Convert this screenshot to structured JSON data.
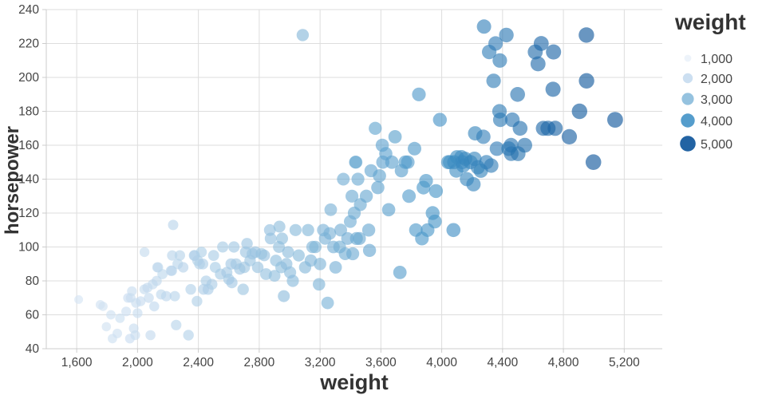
{
  "chart_data": {
    "type": "scatter",
    "title": "",
    "xlabel": "weight",
    "ylabel": "horsepower",
    "x_domain": [
      1400,
      5450
    ],
    "y_domain": [
      40,
      240
    ],
    "x_ticks": [
      {
        "v": 1600,
        "label": "1,600"
      },
      {
        "v": 2000,
        "label": "2,000"
      },
      {
        "v": 2400,
        "label": "2,400"
      },
      {
        "v": 2800,
        "label": "2,800"
      },
      {
        "v": 3200,
        "label": "3,200"
      },
      {
        "v": 3600,
        "label": "3,600"
      },
      {
        "v": 4000,
        "label": "4,000"
      },
      {
        "v": 4400,
        "label": "4,400"
      },
      {
        "v": 4800,
        "label": "4,800"
      },
      {
        "v": 5200,
        "label": "5,200"
      }
    ],
    "y_ticks": [
      {
        "v": 40,
        "label": "40"
      },
      {
        "v": 60,
        "label": "60"
      },
      {
        "v": 80,
        "label": "80"
      },
      {
        "v": 100,
        "label": "100"
      },
      {
        "v": 120,
        "label": "120"
      },
      {
        "v": 140,
        "label": "140"
      },
      {
        "v": 160,
        "label": "160"
      },
      {
        "v": 180,
        "label": "180"
      },
      {
        "v": 200,
        "label": "200"
      },
      {
        "v": 220,
        "label": "220"
      },
      {
        "v": 240,
        "label": "240"
      }
    ],
    "legend": {
      "title": "weight",
      "entries": [
        {
          "label": "1,000",
          "value": 1000
        },
        {
          "label": "2,000",
          "value": 2000
        },
        {
          "label": "3,000",
          "value": 3000
        },
        {
          "label": "4,000",
          "value": 4000
        },
        {
          "label": "5,000",
          "value": 5000
        }
      ]
    },
    "color_stops": [
      [
        1000,
        "#ebf2fa"
      ],
      [
        2000,
        "#c6dbef"
      ],
      [
        3000,
        "#8abbdb"
      ],
      [
        4000,
        "#4292c6"
      ],
      [
        5000,
        "#0a5299"
      ]
    ],
    "size_scale": {
      "k": 0.138
    },
    "point_opacity": 0.62,
    "grid_color": "#dddddd",
    "axis_line_color": "#cccccc",
    "tick_label_color": "#444444",
    "points": [
      [
        1613,
        69
      ],
      [
        1755,
        66
      ],
      [
        1773,
        65
      ],
      [
        1795,
        53
      ],
      [
        1825,
        60
      ],
      [
        1835,
        46
      ],
      [
        1867,
        49
      ],
      [
        1885,
        58
      ],
      [
        1925,
        62
      ],
      [
        1937,
        70
      ],
      [
        1950,
        46
      ],
      [
        1955,
        70
      ],
      [
        1963,
        74
      ],
      [
        1975,
        52
      ],
      [
        1985,
        48
      ],
      [
        1990,
        67
      ],
      [
        2000,
        61
      ],
      [
        2020,
        68
      ],
      [
        2045,
        75
      ],
      [
        2046,
        97
      ],
      [
        2065,
        76
      ],
      [
        2074,
        70
      ],
      [
        2085,
        48
      ],
      [
        2100,
        78
      ],
      [
        2110,
        65
      ],
      [
        2126,
        80
      ],
      [
        2130,
        88
      ],
      [
        2135,
        88
      ],
      [
        2155,
        72
      ],
      [
        2164,
        84
      ],
      [
        2189,
        71
      ],
      [
        2220,
        86
      ],
      [
        2226,
        86
      ],
      [
        2228,
        95
      ],
      [
        2234,
        113
      ],
      [
        2245,
        71
      ],
      [
        2254,
        54
      ],
      [
        2264,
        90
      ],
      [
        2278,
        95
      ],
      [
        2300,
        88
      ],
      [
        2335,
        48
      ],
      [
        2350,
        75
      ],
      [
        2372,
        95
      ],
      [
        2375,
        95
      ],
      [
        2391,
        68
      ],
      [
        2395,
        92
      ],
      [
        2408,
        90
      ],
      [
        2420,
        97
      ],
      [
        2430,
        90
      ],
      [
        2434,
        75
      ],
      [
        2451,
        80
      ],
      [
        2464,
        75
      ],
      [
        2489,
        78
      ],
      [
        2500,
        95
      ],
      [
        2511,
        88
      ],
      [
        2545,
        84
      ],
      [
        2560,
        100
      ],
      [
        2587,
        85
      ],
      [
        2600,
        81
      ],
      [
        2615,
        90
      ],
      [
        2620,
        79
      ],
      [
        2634,
        100
      ],
      [
        2648,
        90
      ],
      [
        2672,
        87
      ],
      [
        2694,
        75
      ],
      [
        2702,
        88
      ],
      [
        2711,
        97
      ],
      [
        2720,
        102
      ],
      [
        2740,
        92
      ],
      [
        2755,
        96
      ],
      [
        2774,
        97
      ],
      [
        2790,
        88
      ],
      [
        2815,
        96
      ],
      [
        2833,
        95
      ],
      [
        2845,
        84
      ],
      [
        2870,
        110
      ],
      [
        2875,
        105
      ],
      [
        2901,
        83
      ],
      [
        2910,
        92
      ],
      [
        2930,
        100
      ],
      [
        2933,
        112
      ],
      [
        2945,
        88
      ],
      [
        2950,
        105
      ],
      [
        2962,
        71
      ],
      [
        2979,
        90
      ],
      [
        2990,
        97
      ],
      [
        3003,
        85
      ],
      [
        3021,
        80
      ],
      [
        3039,
        110
      ],
      [
        3060,
        95
      ],
      [
        3086,
        225
      ],
      [
        3102,
        88
      ],
      [
        3121,
        110
      ],
      [
        3139,
        92
      ],
      [
        3150,
        100
      ],
      [
        3169,
        100
      ],
      [
        3193,
        78
      ],
      [
        3200,
        90
      ],
      [
        3221,
        110
      ],
      [
        3233,
        105
      ],
      [
        3250,
        67
      ],
      [
        3264,
        108
      ],
      [
        3270,
        122
      ],
      [
        3288,
        100
      ],
      [
        3302,
        88
      ],
      [
        3329,
        100
      ],
      [
        3336,
        110
      ],
      [
        3353,
        140
      ],
      [
        3365,
        96
      ],
      [
        3381,
        105
      ],
      [
        3399,
        115
      ],
      [
        3410,
        130
      ],
      [
        3415,
        96
      ],
      [
        3425,
        120
      ],
      [
        3433,
        150
      ],
      [
        3436,
        150
      ],
      [
        3439,
        105
      ],
      [
        3449,
        140
      ],
      [
        3459,
        105
      ],
      [
        3465,
        125
      ],
      [
        3504,
        130
      ],
      [
        3520,
        110
      ],
      [
        3525,
        98
      ],
      [
        3535,
        145
      ],
      [
        3563,
        170
      ],
      [
        3580,
        135
      ],
      [
        3591,
        142
      ],
      [
        3609,
        160
      ],
      [
        3613,
        150
      ],
      [
        3632,
        155
      ],
      [
        3651,
        122
      ],
      [
        3672,
        150
      ],
      [
        3693,
        165
      ],
      [
        3725,
        85
      ],
      [
        3735,
        145
      ],
      [
        3761,
        150
      ],
      [
        3777,
        150
      ],
      [
        3785,
        130
      ],
      [
        3821,
        158
      ],
      [
        3830,
        110
      ],
      [
        3850,
        190
      ],
      [
        3870,
        105
      ],
      [
        3880,
        135
      ],
      [
        3897,
        139
      ],
      [
        3907,
        110
      ],
      [
        3940,
        120
      ],
      [
        3955,
        115
      ],
      [
        3962,
        133
      ],
      [
        3988,
        175
      ],
      [
        4042,
        150
      ],
      [
        4054,
        150
      ],
      [
        4077,
        110
      ],
      [
        4082,
        150
      ],
      [
        4096,
        145
      ],
      [
        4100,
        153
      ],
      [
        4129,
        153
      ],
      [
        4135,
        150
      ],
      [
        4141,
        148
      ],
      [
        4154,
        152
      ],
      [
        4165,
        140
      ],
      [
        4190,
        150
      ],
      [
        4209,
        137
      ],
      [
        4215,
        152
      ],
      [
        4220,
        167
      ],
      [
        4237,
        147
      ],
      [
        4257,
        145
      ],
      [
        4274,
        165
      ],
      [
        4278,
        230
      ],
      [
        4294,
        150
      ],
      [
        4312,
        215
      ],
      [
        4325,
        148
      ],
      [
        4341,
        198
      ],
      [
        4354,
        220
      ],
      [
        4363,
        158
      ],
      [
        4380,
        180
      ],
      [
        4382,
        210
      ],
      [
        4385,
        175
      ],
      [
        4425,
        225
      ],
      [
        4440,
        158
      ],
      [
        4456,
        160
      ],
      [
        4457,
        155
      ],
      [
        4464,
        175
      ],
      [
        4499,
        190
      ],
      [
        4502,
        155
      ],
      [
        4515,
        170
      ],
      [
        4546,
        160
      ],
      [
        4615,
        215
      ],
      [
        4633,
        208
      ],
      [
        4654,
        220
      ],
      [
        4668,
        170
      ],
      [
        4699,
        170
      ],
      [
        4732,
        193
      ],
      [
        4735,
        215
      ],
      [
        4746,
        170
      ],
      [
        4839,
        165
      ],
      [
        4906,
        180
      ],
      [
        4951,
        225
      ],
      [
        4952,
        198
      ],
      [
        4997,
        150
      ],
      [
        5140,
        175
      ]
    ]
  }
}
